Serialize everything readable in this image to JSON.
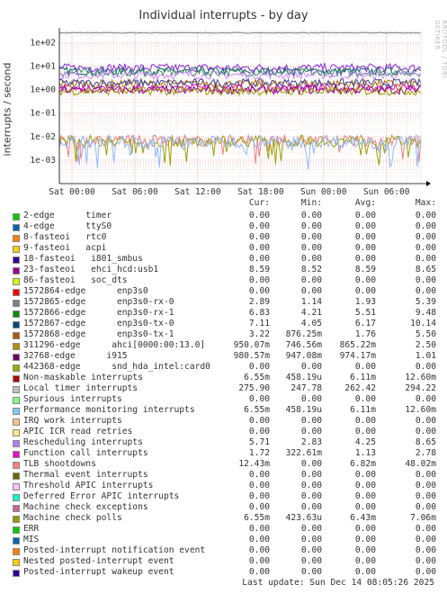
{
  "title": "Individual interrupts - by day",
  "side_label": "RRDTOOL / TOBI OETIKER",
  "chart_data": {
    "type": "line",
    "title": "Individual interrupts - by day",
    "ylabel": "interrupts / second",
    "y_scale": "log",
    "ylim": [
      0.0001,
      300
    ],
    "y_ticks": [
      "1e+02",
      "1e+01",
      "1e+00",
      "1e-01",
      "1e-02",
      "1e-03"
    ],
    "x_ticks": [
      "Sat 00:00",
      "Sat 06:00",
      "Sat 12:00",
      "Sat 18:00",
      "Sun 00:00",
      "Sun 06:00"
    ],
    "grid": true,
    "series": [
      {
        "name": "Local timer interrupts",
        "color": "#7f7f7f",
        "avg": 262.42
      },
      {
        "name": "1572867-edge enp3s0-tx-0",
        "color": "#006060",
        "avg": 6.17
      },
      {
        "name": "23-fasteoi ehci_hcd:usb1",
        "color": "#8a2be2",
        "avg": 8.59
      },
      {
        "name": "1572866-edge enp3s0-rx-1",
        "color": "#3a8a6a",
        "avg": 5.51
      },
      {
        "name": "Rescheduling interrupts",
        "color": "#cc88ff",
        "avg": 4.25
      },
      {
        "name": "1572868-edge enp3s0-tx-1",
        "color": "#b36b00",
        "avg": 1.76
      },
      {
        "name": "1572865-edge enp3s0-rx-0",
        "color": "#4040a0",
        "avg": 1.93
      },
      {
        "name": "Function call interrupts",
        "color": "#e000c0",
        "avg": 1.13
      },
      {
        "name": "32768-edge i915",
        "color": "#800080",
        "avg": 0.974
      },
      {
        "name": "311296-edge ahci[0000:00:13.0]",
        "color": "#a0a000",
        "avg": 0.865
      },
      {
        "name": "TLB shootdowns",
        "color": "#f08080",
        "avg": 0.00682
      },
      {
        "name": "Machine check polls",
        "color": "#99a000",
        "avg": 0.00643
      },
      {
        "name": "Performance monitoring interrupts",
        "color": "#8fb8ff",
        "avg": 0.00611
      }
    ]
  },
  "legend": {
    "headers": [
      "Cur:",
      "Min:",
      "Avg:",
      "Max:"
    ],
    "rows": [
      {
        "name": "2-edge      timer",
        "color": "#00cc00",
        "cur": "0.00",
        "min": "0.00",
        "avg": "0.00",
        "max": "0.00"
      },
      {
        "name": "4-edge      ttyS0",
        "color": "#0066b3",
        "cur": "0.00",
        "min": "0.00",
        "avg": "0.00",
        "max": "0.00"
      },
      {
        "name": "8-fasteoi   rtc0",
        "color": "#ff8000",
        "cur": "0.00",
        "min": "0.00",
        "avg": "0.00",
        "max": "0.00"
      },
      {
        "name": "9-fasteoi   acpi",
        "color": "#ffcc00",
        "cur": "0.00",
        "min": "0.00",
        "avg": "0.00",
        "max": "0.00"
      },
      {
        "name": "18-fasteoi   i801_smbus",
        "color": "#330099",
        "cur": "0.00",
        "min": "0.00",
        "avg": "0.00",
        "max": "0.00"
      },
      {
        "name": "23-fasteoi   ehci_hcd:usb1",
        "color": "#990099",
        "cur": "8.59",
        "min": "8.52",
        "avg": "8.59",
        "max": "8.65"
      },
      {
        "name": "86-fasteoi   soc_dts",
        "color": "#ccff00",
        "cur": "0.00",
        "min": "0.00",
        "avg": "0.00",
        "max": "0.00"
      },
      {
        "name": "1572864-edge      enp3s0",
        "color": "#ff0000",
        "cur": "0.00",
        "min": "0.00",
        "avg": "0.00",
        "max": "0.00"
      },
      {
        "name": "1572865-edge      enp3s0-rx-0",
        "color": "#808080",
        "cur": "2.89",
        "min": "1.14",
        "avg": "1.93",
        "max": "5.39"
      },
      {
        "name": "1572866-edge      enp3s0-rx-1",
        "color": "#008f00",
        "cur": "6.83",
        "min": "4.21",
        "avg": "5.51",
        "max": "9.48"
      },
      {
        "name": "1572867-edge      enp3s0-tx-0",
        "color": "#00487d",
        "cur": "7.11",
        "min": "4.05",
        "avg": "6.17",
        "max": "10.14"
      },
      {
        "name": "1572868-edge      enp3s0-tx-1",
        "color": "#b35a00",
        "cur": "3.22",
        "min": "876.25m",
        "avg": "1.76",
        "max": "5.50"
      },
      {
        "name": "311296-edge      ahci[0000:00:13.0]",
        "color": "#b38f00",
        "cur": "950.07m",
        "min": "746.56m",
        "avg": "865.22m",
        "max": "2.50"
      },
      {
        "name": "32768-edge      i915",
        "color": "#6b006b",
        "cur": "980.57m",
        "min": "947.08m",
        "avg": "974.17m",
        "max": "1.01"
      },
      {
        "name": "442368-edge      snd_hda_intel:card0",
        "color": "#8fb300",
        "cur": "0.00",
        "min": "0.00",
        "avg": "0.00",
        "max": "0.00"
      },
      {
        "name": "Non-maskable interrupts",
        "color": "#b30000",
        "cur": "6.55m",
        "min": "458.19u",
        "avg": "6.11m",
        "max": "12.60m"
      },
      {
        "name": "Local timer interrupts",
        "color": "#bebebe",
        "cur": "275.90",
        "min": "247.78",
        "avg": "262.42",
        "max": "294.22"
      },
      {
        "name": "Spurious interrupts",
        "color": "#80ff80",
        "cur": "0.00",
        "min": "0.00",
        "avg": "0.00",
        "max": "0.00"
      },
      {
        "name": "Performance monitoring interrupts",
        "color": "#80c9ff",
        "cur": "6.55m",
        "min": "458.19u",
        "avg": "6.11m",
        "max": "12.60m"
      },
      {
        "name": "IRQ work interrupts",
        "color": "#ffc080",
        "cur": "0.00",
        "min": "0.00",
        "avg": "0.00",
        "max": "0.00"
      },
      {
        "name": "APIC ICR read retries",
        "color": "#ffe680",
        "cur": "0.00",
        "min": "0.00",
        "avg": "0.00",
        "max": "0.00"
      },
      {
        "name": "Rescheduling interrupts",
        "color": "#aa80ff",
        "cur": "5.71",
        "min": "2.83",
        "avg": "4.25",
        "max": "8.65"
      },
      {
        "name": "Function call interrupts",
        "color": "#ee00cc",
        "cur": "1.72",
        "min": "322.61m",
        "avg": "1.13",
        "max": "2.78"
      },
      {
        "name": "TLB shootdowns",
        "color": "#ff8080",
        "cur": "12.43m",
        "min": "0.00",
        "avg": "6.82m",
        "max": "48.02m"
      },
      {
        "name": "Thermal event interrupts",
        "color": "#666600",
        "cur": "0.00",
        "min": "0.00",
        "avg": "0.00",
        "max": "0.00"
      },
      {
        "name": "Threshold APIC interrupts",
        "color": "#ffbfff",
        "cur": "0.00",
        "min": "0.00",
        "avg": "0.00",
        "max": "0.00"
      },
      {
        "name": "Deferred Error APIC interrupts",
        "color": "#00ffcc",
        "cur": "0.00",
        "min": "0.00",
        "avg": "0.00",
        "max": "0.00"
      },
      {
        "name": "Machine check exceptions",
        "color": "#cc6699",
        "cur": "0.00",
        "min": "0.00",
        "avg": "0.00",
        "max": "0.00"
      },
      {
        "name": "Machine check polls",
        "color": "#999900",
        "cur": "6.55m",
        "min": "423.63u",
        "avg": "6.43m",
        "max": "7.06m"
      },
      {
        "name": "ERR",
        "color": "#00cc00",
        "cur": "0.00",
        "min": "0.00",
        "avg": "0.00",
        "max": "0.00"
      },
      {
        "name": "MIS",
        "color": "#0066b3",
        "cur": "0.00",
        "min": "0.00",
        "avg": "0.00",
        "max": "0.00"
      },
      {
        "name": "Posted-interrupt notification event",
        "color": "#ff8000",
        "cur": "0.00",
        "min": "0.00",
        "avg": "0.00",
        "max": "0.00"
      },
      {
        "name": "Nested posted-interrupt event",
        "color": "#ffcc00",
        "cur": "0.00",
        "min": "0.00",
        "avg": "0.00",
        "max": "0.00"
      },
      {
        "name": "Posted-interrupt wakeup event",
        "color": "#330099",
        "cur": "0.00",
        "min": "0.00",
        "avg": "0.00",
        "max": "0.00"
      }
    ]
  },
  "footer": "Last update: Sun Dec 14 08:05:26 2025"
}
